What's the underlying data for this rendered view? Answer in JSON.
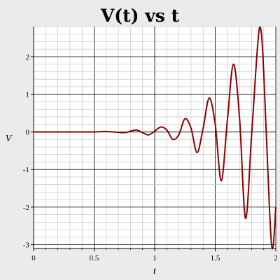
{
  "chart_data": {
    "type": "line",
    "title": "V(t) vs t",
    "xlabel": "t",
    "ylabel": "V",
    "xlim": [
      0,
      2
    ],
    "ylim": [
      -3.1,
      2.8
    ],
    "x_ticks": [
      0,
      0.5,
      1,
      1.5,
      2
    ],
    "x_tick_labels": [
      "0",
      "0.5",
      "1",
      "1.5",
      "2"
    ],
    "y_ticks": [
      -3,
      -2,
      -1,
      0,
      1,
      2
    ],
    "y_tick_labels": [
      "-3",
      "-2",
      "-1",
      "0",
      "1",
      "2"
    ],
    "grid": true,
    "legend": "none",
    "series": [
      {
        "color": "#8b0000",
        "x": [
          0,
          0.3,
          0.5,
          0.6,
          0.75,
          0.8,
          0.85,
          0.9,
          0.95,
          1.0,
          1.05,
          1.1,
          1.15,
          1.2,
          1.25,
          1.3,
          1.35,
          1.4,
          1.45,
          1.5,
          1.55,
          1.6,
          1.65,
          1.7,
          1.75,
          1.8,
          1.85,
          1.875,
          1.9,
          1.95,
          1.975,
          2.0
        ],
        "y": [
          0,
          0.0,
          0.0,
          0.01,
          -0.02,
          0.02,
          0.05,
          -0.02,
          -0.08,
          0.02,
          0.13,
          0.05,
          -0.2,
          -0.07,
          0.35,
          0.1,
          -0.55,
          0.1,
          0.9,
          0.2,
          -1.3,
          0.3,
          1.8,
          0.4,
          -2.3,
          -0.1,
          2.3,
          2.75,
          1.6,
          -2.2,
          -3.1,
          -2.0
        ]
      }
    ]
  },
  "colors": {
    "background": "#ebebeb",
    "plot_area": "#ffffff",
    "grid": "#bdbdbd",
    "curve": "#8b0000"
  }
}
